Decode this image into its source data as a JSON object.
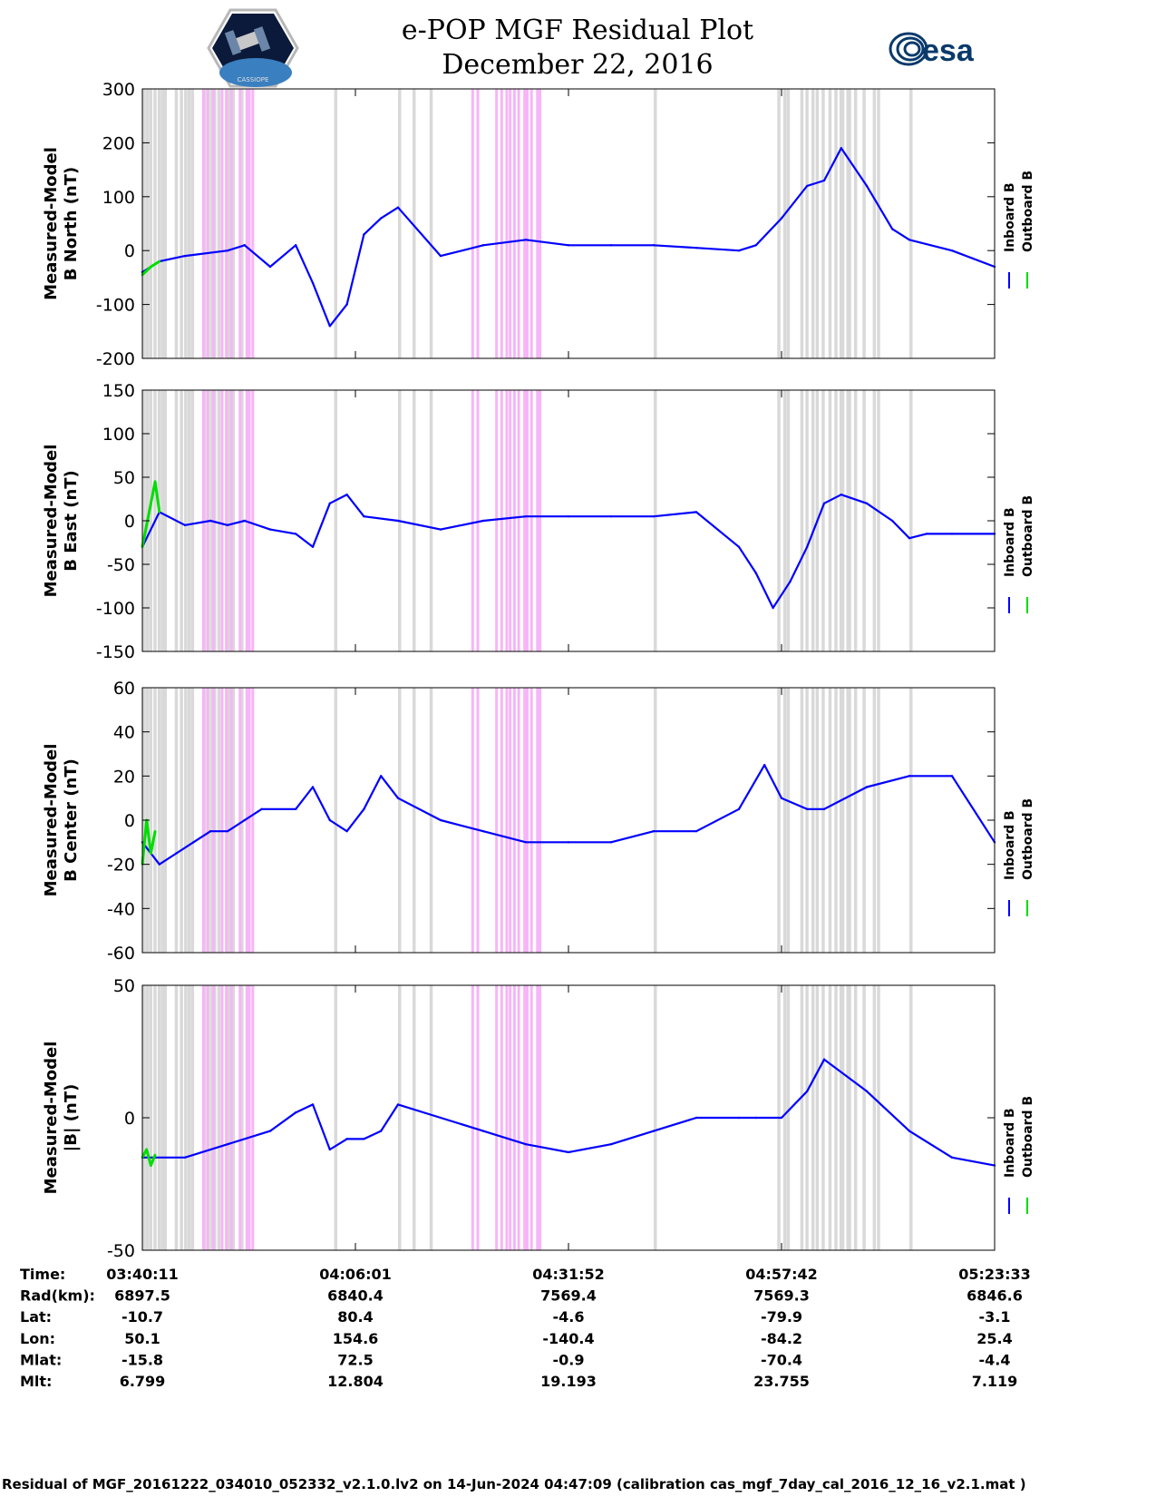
{
  "header": {
    "title": "e-POP MGF Residual Plot",
    "date": "December 22, 2016",
    "logo_right_text": "esa",
    "logo_left_text": "CASSIOPE"
  },
  "colors": {
    "inboard": "#0000ff",
    "outboard": "#00dd00",
    "gray_band": "#d9d9d9",
    "magenta_band": "#f7b5f7"
  },
  "chart_data": [
    {
      "type": "line",
      "ylabel_line1": "Measured-Model",
      "ylabel_line2": "B North (nT)",
      "ylim": [
        -200,
        300
      ],
      "yticks": [
        300,
        200,
        100,
        0,
        -100,
        -200
      ],
      "legend": [
        "Inboard B",
        "Outboard B"
      ],
      "series": [
        {
          "name": "Inboard B",
          "x": [
            0,
            0.02,
            0.05,
            0.1,
            0.12,
            0.15,
            0.18,
            0.2,
            0.22,
            0.24,
            0.26,
            0.28,
            0.3,
            0.35,
            0.4,
            0.45,
            0.5,
            0.55,
            0.6,
            0.65,
            0.7,
            0.72,
            0.75,
            0.78,
            0.8,
            0.82,
            0.85,
            0.88,
            0.9,
            0.95,
            1.0
          ],
          "y": [
            -40,
            -20,
            -10,
            0,
            10,
            -30,
            10,
            -60,
            -140,
            -100,
            30,
            60,
            80,
            -10,
            10,
            20,
            10,
            10,
            10,
            5,
            0,
            10,
            60,
            120,
            130,
            190,
            120,
            40,
            20,
            0,
            -30
          ]
        },
        {
          "name": "Outboard B",
          "x": [
            0,
            0.01,
            0.02
          ],
          "y": [
            -45,
            -30,
            -20
          ]
        }
      ]
    },
    {
      "type": "line",
      "ylabel_line1": "Measured-Model",
      "ylabel_line2": "B East (nT)",
      "ylim": [
        -150,
        150
      ],
      "yticks": [
        150,
        100,
        50,
        0,
        -50,
        -100,
        -150
      ],
      "legend": [
        "Inboard B",
        "Outboard B"
      ],
      "series": [
        {
          "name": "Inboard B",
          "x": [
            0,
            0.02,
            0.05,
            0.08,
            0.1,
            0.12,
            0.15,
            0.18,
            0.2,
            0.22,
            0.24,
            0.26,
            0.3,
            0.35,
            0.4,
            0.45,
            0.5,
            0.55,
            0.6,
            0.65,
            0.7,
            0.72,
            0.74,
            0.76,
            0.78,
            0.8,
            0.82,
            0.85,
            0.88,
            0.9,
            0.92,
            0.95,
            1.0
          ],
          "y": [
            -30,
            10,
            -5,
            0,
            -5,
            0,
            -10,
            -15,
            -30,
            20,
            30,
            5,
            0,
            -10,
            0,
            5,
            5,
            5,
            5,
            10,
            -30,
            -60,
            -100,
            -70,
            -30,
            20,
            30,
            20,
            0,
            -20,
            -15,
            -15,
            -15
          ]
        },
        {
          "name": "Outboard B",
          "x": [
            0,
            0.01,
            0.015,
            0.02
          ],
          "y": [
            -30,
            20,
            45,
            10
          ]
        }
      ]
    },
    {
      "type": "line",
      "ylabel_line1": "Measured-Model",
      "ylabel_line2": "B Center (nT)",
      "ylim": [
        -60,
        60
      ],
      "yticks": [
        60,
        40,
        20,
        0,
        -20,
        -40,
        -60
      ],
      "legend": [
        "Inboard B",
        "Outboard B"
      ],
      "series": [
        {
          "name": "Inboard B",
          "x": [
            0,
            0.02,
            0.04,
            0.06,
            0.08,
            0.1,
            0.12,
            0.14,
            0.18,
            0.2,
            0.22,
            0.24,
            0.26,
            0.28,
            0.3,
            0.35,
            0.4,
            0.45,
            0.5,
            0.55,
            0.6,
            0.65,
            0.7,
            0.73,
            0.75,
            0.78,
            0.8,
            0.85,
            0.9,
            0.95,
            1.0
          ],
          "y": [
            -10,
            -20,
            -15,
            -10,
            -5,
            -5,
            0,
            5,
            5,
            15,
            0,
            -5,
            5,
            20,
            10,
            0,
            -5,
            -10,
            -10,
            -10,
            -5,
            -5,
            5,
            25,
            10,
            5,
            5,
            15,
            20,
            20,
            -10
          ]
        },
        {
          "name": "Outboard B",
          "x": [
            0,
            0.005,
            0.01,
            0.015
          ],
          "y": [
            -20,
            0,
            -15,
            -5
          ]
        }
      ]
    },
    {
      "type": "line",
      "ylabel_line1": "Measured-Model",
      "ylabel_line2": "|B| (nT)",
      "ylim": [
        -50,
        50
      ],
      "yticks": [
        50,
        0,
        -50
      ],
      "legend": [
        "Inboard B",
        "Outboard B"
      ],
      "series": [
        {
          "name": "Inboard B",
          "x": [
            0,
            0.05,
            0.1,
            0.15,
            0.18,
            0.2,
            0.22,
            0.24,
            0.26,
            0.28,
            0.3,
            0.35,
            0.4,
            0.45,
            0.5,
            0.55,
            0.6,
            0.65,
            0.7,
            0.72,
            0.75,
            0.78,
            0.8,
            0.85,
            0.9,
            0.95,
            1.0
          ],
          "y": [
            -15,
            -15,
            -10,
            -5,
            2,
            5,
            -12,
            -8,
            -8,
            -5,
            5,
            0,
            -5,
            -10,
            -13,
            -10,
            -5,
            0,
            0,
            0,
            0,
            10,
            22,
            10,
            -5,
            -15,
            -18
          ]
        },
        {
          "name": "Outboard B",
          "x": [
            0,
            0.005,
            0.01,
            0.015
          ],
          "y": [
            -15,
            -12,
            -18,
            -14
          ]
        }
      ]
    }
  ],
  "x_axis": {
    "tick_fracs": [
      0.0,
      0.25,
      0.5,
      0.75,
      1.0
    ]
  },
  "bands": {
    "gray": [
      0.0,
      0.004,
      0.008,
      0.013,
      0.018,
      0.022,
      0.025,
      0.038,
      0.044,
      0.049,
      0.053,
      0.057,
      0.071,
      0.075,
      0.079,
      0.083,
      0.088,
      0.1,
      0.105,
      0.115,
      0.225,
      0.3,
      0.317,
      0.337,
      0.6,
      0.745,
      0.752,
      0.756,
      0.772,
      0.778,
      0.785,
      0.79,
      0.797,
      0.805,
      0.812,
      0.818,
      0.82,
      0.826,
      0.828,
      0.835,
      0.845,
      0.857,
      0.862,
      0.9
    ],
    "magenta": [
      0.07,
      0.075,
      0.082,
      0.092,
      0.097,
      0.103,
      0.113,
      0.121,
      0.124,
      0.128,
      0.386,
      0.392,
      0.414,
      0.42,
      0.426,
      0.43,
      0.435,
      0.44,
      0.447,
      0.45,
      0.455,
      0.462,
      0.465
    ]
  },
  "table": {
    "rows": [
      {
        "label": "Time:",
        "values": [
          "03:40:11",
          "04:06:01",
          "04:31:52",
          "04:57:42",
          "05:23:33"
        ]
      },
      {
        "label": "Rad(km):",
        "values": [
          "6897.5",
          "6840.4",
          "7569.4",
          "7569.3",
          "6846.6"
        ]
      },
      {
        "label": "Lat:",
        "values": [
          "-10.7",
          "80.4",
          "-4.6",
          "-79.9",
          "-3.1"
        ]
      },
      {
        "label": "Lon:",
        "values": [
          "50.1",
          "154.6",
          "-140.4",
          "-84.2",
          "25.4"
        ]
      },
      {
        "label": "Mlat:",
        "values": [
          "-15.8",
          "72.5",
          "-0.9",
          "-70.4",
          "-4.4"
        ]
      },
      {
        "label": "Mlt:",
        "values": [
          "6.799",
          "12.804",
          "19.193",
          "23.755",
          "7.119"
        ]
      }
    ]
  },
  "footer": "Residual of MGF_20161222_034010_052332_v2.1.0.lv2 on 14-Jun-2024 04:47:09 (calibration cas_mgf_7day_cal_2016_12_16_v2.1.mat )"
}
